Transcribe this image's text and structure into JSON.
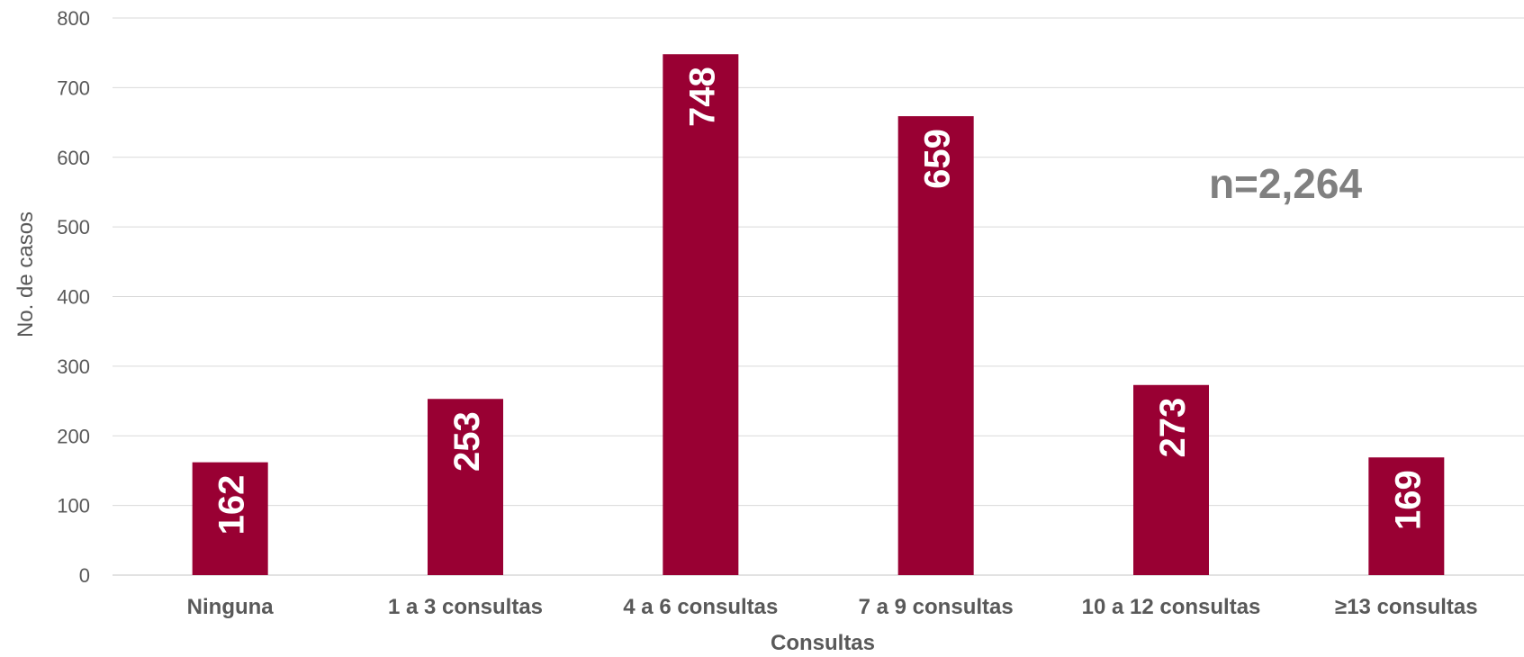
{
  "chart_data": {
    "type": "bar",
    "categories": [
      "Ninguna",
      "1 a 3 consultas",
      "4 a 6 consultas",
      "7 a 9 consultas",
      "10 a 12 consultas",
      "≥13 consultas"
    ],
    "values": [
      162,
      253,
      748,
      659,
      273,
      169
    ],
    "data_labels": [
      "162",
      "253",
      "748",
      "659",
      "273",
      "169"
    ],
    "title": "",
    "xlabel": "Consultas",
    "ylabel": "No. de casos",
    "ylim": [
      0,
      800
    ],
    "yticks": [
      0,
      100,
      200,
      300,
      400,
      500,
      600,
      700,
      800
    ],
    "grid": true,
    "legend": "none",
    "annotation": "n=2,264",
    "colors": {
      "bar": "#990033",
      "grid": "#d9d9d9",
      "text": "#595959",
      "annotation": "#808080",
      "label": "#ffffff"
    }
  }
}
